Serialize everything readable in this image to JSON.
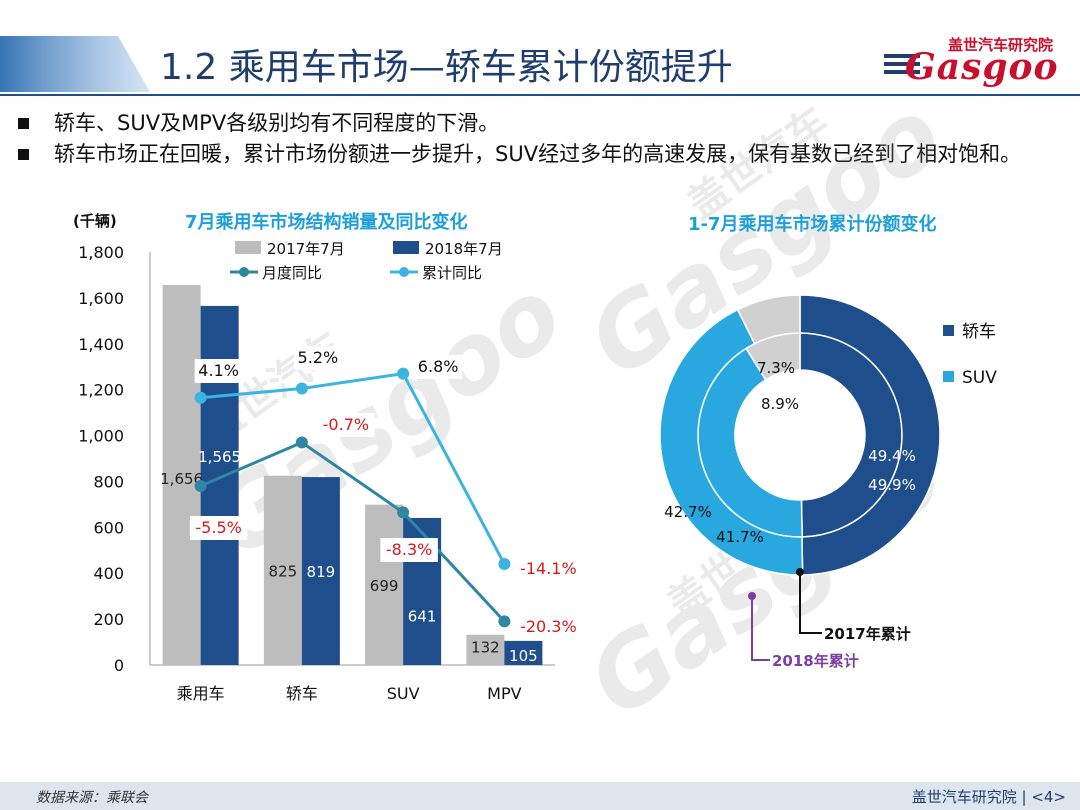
{
  "header": {
    "title": "1.2 乘用车市场—轿车累计份额提升",
    "logo_cn": "盖世汽车研究院",
    "logo_en": "Gasgoo"
  },
  "bullets": [
    "轿车、SUV及MPV各级别均有不同程度的下滑。",
    "轿车市场正在回暖，累计市场份额进一步提升，SUV经过多年的高速发展，保有基数已经到了相对饱和。"
  ],
  "watermark": [
    "盖世汽车",
    "Gasgoo"
  ],
  "colors": {
    "bar_2017": "#bdbdbd",
    "bar_2018": "#1f4e8c",
    "line_monthly": "#2e86a0",
    "line_cumulative": "#3cb4e0",
    "donut_sedan": "#1f4e8c",
    "donut_suv": "#29a8e0",
    "donut_mpv": "#d0d0d0",
    "negative": "#d7191c",
    "title_blue": "#1e9fd9",
    "label_2018": "#7b3fa0"
  },
  "chart_data": [
    {
      "type": "bar",
      "title": "7月乘用车市场结构销量及同比变化",
      "ylabel": "(千辆)",
      "ylim": [
        0,
        1800
      ],
      "yticks": [
        "0",
        "200",
        "400",
        "600",
        "800",
        "1,000",
        "1,200",
        "1,400",
        "1,600",
        "1,800"
      ],
      "categories": [
        "乘用车",
        "轿车",
        "SUV",
        "MPV"
      ],
      "series": [
        {
          "name": "2017年7月",
          "values": [
            1656,
            825,
            699,
            132
          ],
          "labels": [
            "1,656",
            "825",
            "699",
            "132"
          ]
        },
        {
          "name": "2018年7月",
          "values": [
            1565,
            819,
            641,
            105
          ],
          "labels": [
            "1,565",
            "819",
            "641",
            "105"
          ]
        }
      ],
      "lines": [
        {
          "name": "月度同比",
          "values": [
            -5.5,
            -0.7,
            -8.3,
            -20.3
          ],
          "labels": [
            "-5.5%",
            "-0.7%",
            "-8.3%",
            "-20.3%"
          ],
          "plot_y": [
            780,
            970,
            665,
            190
          ]
        },
        {
          "name": "累计同比",
          "values": [
            4.1,
            5.2,
            6.8,
            -14.1
          ],
          "labels": [
            "4.1%",
            "5.2%",
            "6.8%",
            "-14.1%"
          ],
          "plot_y": [
            1165,
            1205,
            1270,
            440
          ]
        }
      ],
      "legend": "top"
    },
    {
      "type": "pie",
      "title": "1-7月乘用车市场累计份额变化",
      "legend": "right",
      "legend_entries": [
        "轿车",
        "SUV"
      ],
      "rings": [
        {
          "name": "2017年累计",
          "values": [
            49.9,
            41.7,
            8.9
          ],
          "labels": [
            "49.9%",
            "41.7%",
            "8.9%"
          ]
        },
        {
          "name": "2018年累计",
          "values": [
            49.4,
            42.7,
            7.3
          ],
          "labels": [
            "49.4%",
            "42.7%",
            "7.3%"
          ]
        }
      ],
      "callouts": [
        "2017年累计",
        "2018年累计"
      ]
    }
  ],
  "footer": {
    "source": "数据来源：乘联会",
    "org": "盖世汽车研究院",
    "page": "<4>"
  }
}
